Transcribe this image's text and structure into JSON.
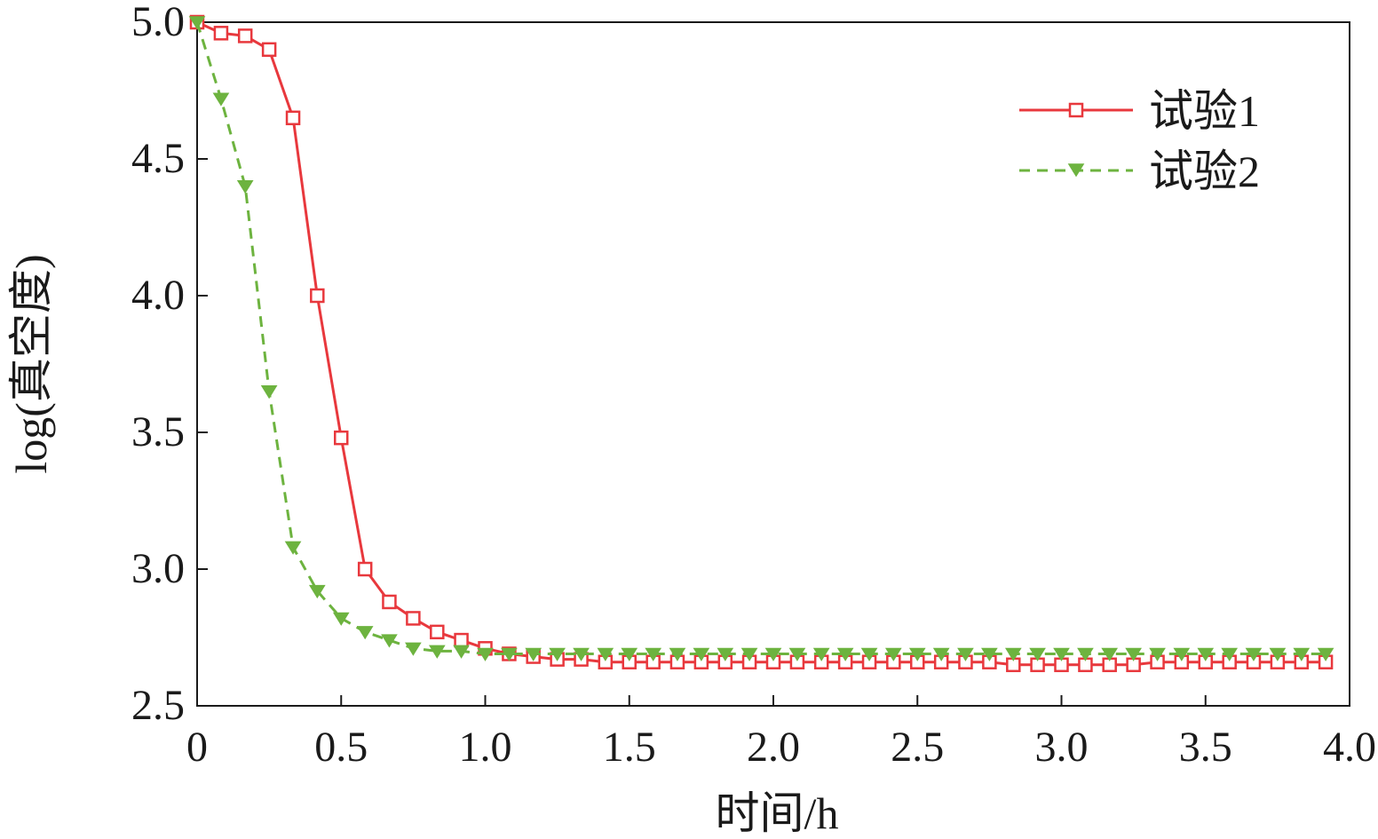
{
  "chart_data": {
    "type": "line",
    "xlabel": "时间/h",
    "ylabel": "log(真空度)",
    "xlim": [
      0,
      4.0
    ],
    "ylim": [
      2.5,
      5.0
    ],
    "xticks": [
      "0",
      "0.5",
      "1.0",
      "1.5",
      "2.0",
      "2.5",
      "3.0",
      "3.5",
      "4.0"
    ],
    "yticks": [
      "2.5",
      "3.0",
      "3.5",
      "4.0",
      "4.5",
      "5.0"
    ],
    "legend_position": "top-right",
    "series": [
      {
        "name": "试验1",
        "color": "#e8383d",
        "marker": "square",
        "line_style": "solid",
        "x": [
          0,
          0.083,
          0.167,
          0.25,
          0.333,
          0.417,
          0.5,
          0.583,
          0.667,
          0.75,
          0.833,
          0.917,
          1.0,
          1.083,
          1.167,
          1.25,
          1.333,
          1.417,
          1.5,
          1.583,
          1.667,
          1.75,
          1.833,
          1.917,
          2.0,
          2.083,
          2.167,
          2.25,
          2.333,
          2.417,
          2.5,
          2.583,
          2.667,
          2.75,
          2.833,
          2.917,
          3.0,
          3.083,
          3.167,
          3.25,
          3.333,
          3.417,
          3.5,
          3.583,
          3.667,
          3.75,
          3.833,
          3.917
        ],
        "y": [
          5.0,
          4.96,
          4.95,
          4.9,
          4.65,
          4.0,
          3.48,
          3.0,
          2.88,
          2.82,
          2.77,
          2.74,
          2.71,
          2.69,
          2.68,
          2.67,
          2.67,
          2.66,
          2.66,
          2.66,
          2.66,
          2.66,
          2.66,
          2.66,
          2.66,
          2.66,
          2.66,
          2.66,
          2.66,
          2.66,
          2.66,
          2.66,
          2.66,
          2.66,
          2.65,
          2.65,
          2.65,
          2.65,
          2.65,
          2.65,
          2.66,
          2.66,
          2.66,
          2.66,
          2.66,
          2.66,
          2.66,
          2.66
        ]
      },
      {
        "name": "试验2",
        "color": "#6db33f",
        "marker": "triangle-down",
        "line_style": "dashed",
        "x": [
          0,
          0.083,
          0.167,
          0.25,
          0.333,
          0.417,
          0.5,
          0.583,
          0.667,
          0.75,
          0.833,
          0.917,
          1.0,
          1.083,
          1.167,
          1.25,
          1.333,
          1.417,
          1.5,
          1.583,
          1.667,
          1.75,
          1.833,
          1.917,
          2.0,
          2.083,
          2.167,
          2.25,
          2.333,
          2.417,
          2.5,
          2.583,
          2.667,
          2.75,
          2.833,
          2.917,
          3.0,
          3.083,
          3.167,
          3.25,
          3.333,
          3.417,
          3.5,
          3.583,
          3.667,
          3.75,
          3.833,
          3.917
        ],
        "y": [
          5.0,
          4.72,
          4.4,
          3.65,
          3.08,
          2.92,
          2.82,
          2.77,
          2.74,
          2.71,
          2.7,
          2.7,
          2.69,
          2.69,
          2.69,
          2.69,
          2.69,
          2.69,
          2.69,
          2.69,
          2.69,
          2.69,
          2.69,
          2.69,
          2.69,
          2.69,
          2.69,
          2.69,
          2.69,
          2.69,
          2.69,
          2.69,
          2.69,
          2.69,
          2.69,
          2.69,
          2.69,
          2.69,
          2.69,
          2.69,
          2.69,
          2.69,
          2.69,
          2.69,
          2.69,
          2.69,
          2.69,
          2.69
        ]
      }
    ]
  }
}
